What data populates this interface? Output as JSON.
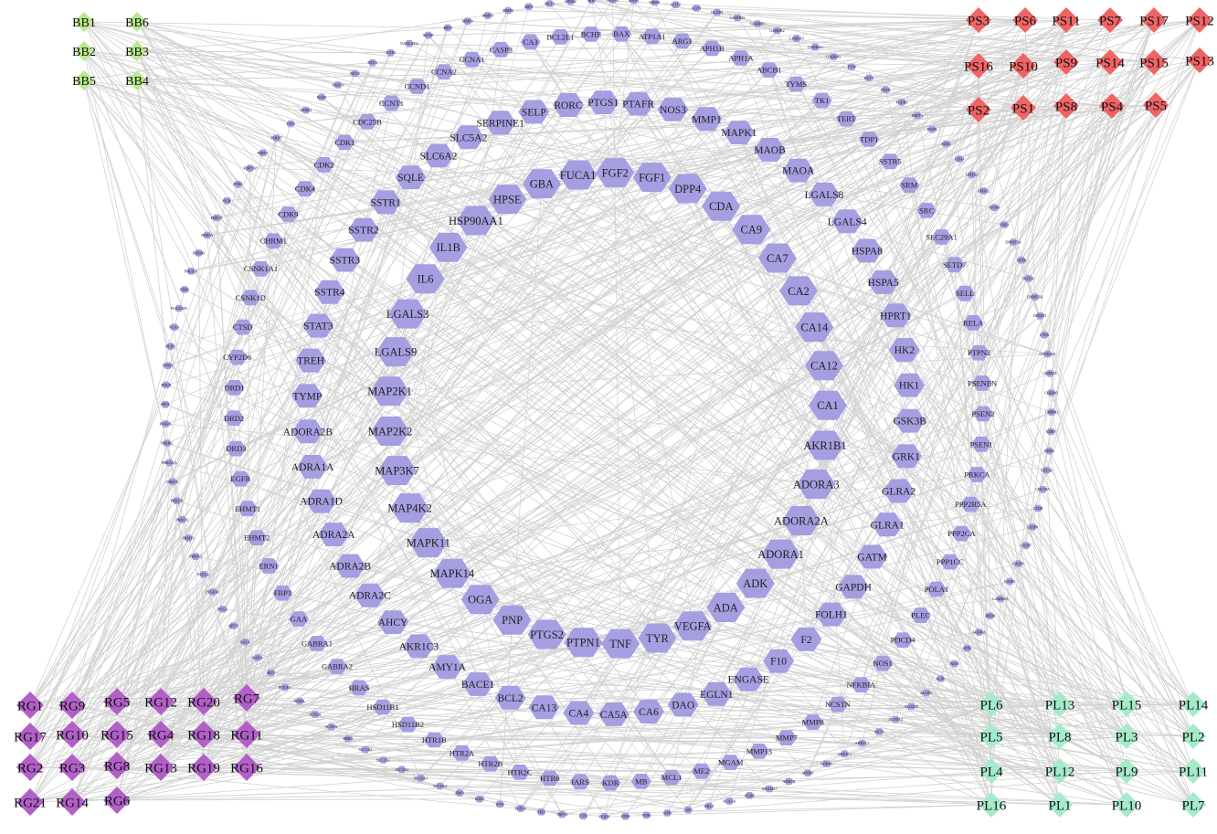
{
  "colors": {
    "edge": "#d2d2d2",
    "hexagon": "#a59ee0",
    "bb": "#b9ea8d",
    "ps": "#ef6464",
    "rg": "#b260c8",
    "pl": "#a5ebcb"
  },
  "node_shape": {
    "targets": "hexagon",
    "compounds": "diamond"
  },
  "compound_groups": [
    {
      "name": "BB",
      "ids": [
        "BB1",
        "BB6",
        "BB2",
        "BB3",
        "BB5",
        "BB4"
      ]
    },
    {
      "name": "PS",
      "ids": [
        "PS3",
        "PS6",
        "PS11",
        "PS7",
        "PS17",
        "PS12",
        "PS16",
        "PS10",
        "PS9",
        "PS14",
        "PS15",
        "PS13",
        "PS2",
        "PS1",
        "PS8",
        "PS4",
        "PS5"
      ]
    },
    {
      "name": "RG",
      "ids": [
        "RG1",
        "RG9",
        "RG5",
        "RG12",
        "RG20",
        "RG7",
        "RG17",
        "RG10",
        "RG15",
        "RG4",
        "RG18",
        "RG11",
        "RG2",
        "RG3",
        "RG8",
        "RG13",
        "RG19",
        "RG16",
        "RG21",
        "RG14",
        "RG6"
      ]
    },
    {
      "name": "PL",
      "ids": [
        "PL6",
        "PL13",
        "PL15",
        "PL14",
        "PL5",
        "PL8",
        "PL3",
        "PL2",
        "PL4",
        "PL12",
        "PL9",
        "PL11",
        "PL16",
        "PL1",
        "PL10",
        "PL7"
      ]
    }
  ],
  "target_rings": {
    "inner": [
      "FUCA1",
      "FGF2",
      "FGF1",
      "DPP4",
      "CDA",
      "CA9",
      "CA7",
      "CA2",
      "CA14",
      "CA12",
      "CA1",
      "AKR1B1",
      "ADORA3",
      "ADORA2A",
      "ADORA1",
      "ADK",
      "ADA",
      "VEGFA",
      "TYR",
      "TNF",
      "PTPN1",
      "PTGS2",
      "PNP",
      "OGA",
      "MAPK14",
      "MAPK11",
      "MAP4K2",
      "MAP3K7",
      "MAP2K2",
      "MAP2K1",
      "LGALS9",
      "LGALS3",
      "IL6",
      "IL1B",
      "HSP90AA1",
      "HPSE",
      "GBA"
    ],
    "ring2": [
      "PTGS1",
      "PTAFR",
      "NOS3",
      "MMP1",
      "MAPK1",
      "MAOB",
      "MAOA",
      "LGALS8",
      "LGALS4",
      "HSPA8",
      "HSPA5",
      "HPRT1",
      "HK2",
      "HK1",
      "GSK3B",
      "GRK1",
      "GLRA2",
      "GLRA1",
      "GATM",
      "GAPDH",
      "FOLH1",
      "F2",
      "F10",
      "ENGASE",
      "EGLN1",
      "DAO",
      "CA6",
      "CA5A",
      "CA4",
      "CA13",
      "BCL2",
      "BACE1",
      "AMY1A",
      "AKR1C3",
      "AHCY",
      "ADRA2C",
      "ADRA2B",
      "ADRA2A",
      "ADRA1D",
      "ADRA1A",
      "ADORA2B",
      "TYMP",
      "TREH",
      "STAT3",
      "SSTR4",
      "SSTR3",
      "SSTR2",
      "SSTR1",
      "SQLE",
      "SLC6A2",
      "SLC5A2",
      "SERPINE1",
      "SELP",
      "RORC"
    ],
    "ring3": [
      "BAX",
      "ATP1A1",
      "ARG1",
      "APH1B",
      "APH1A",
      "ABCB1",
      "TYMS",
      "TK1",
      "TERT",
      "TDP1",
      "SSTR5",
      "SRM",
      "SRC",
      "SLC29A1",
      "SETD7",
      "SELL",
      "RELA",
      "PTPN2",
      "PSENEN",
      "PSEN2",
      "PSEN1",
      "PRKCA",
      "PPP2R5A",
      "PPP2CA",
      "PPP1CC",
      "POLA1",
      "PLEC",
      "PDCD4",
      "NOS1",
      "NFKBIA",
      "NCSTN",
      "MMP8",
      "MMP7",
      "MMP13",
      "MGAM",
      "ME2",
      "MCL1",
      "MB",
      "KDR",
      "IARS",
      "HTR6",
      "HTR2C",
      "HTR2B",
      "HTR2A",
      "HTR1B",
      "HSD11B2",
      "HSD11B1",
      "HRAS",
      "GABRA2",
      "GABRA1",
      "GAA",
      "FBP1",
      "ERN1",
      "EHMT2",
      "EHMT1",
      "EGFR",
      "DRD3",
      "DRD2",
      "DRD1",
      "CYP2D6",
      "CTSD",
      "CSNK1D",
      "CSNK1A1",
      "CHRM1",
      "CDK9",
      "CDK4",
      "CDK2",
      "CDK1",
      "CDC25B",
      "CCNT1",
      "CCND1",
      "CCNA2",
      "CCNA1",
      "CASP3",
      "CA3",
      "BCL2L1",
      "BCHE"
    ],
    "outer": [
      "GRIA1",
      "GOT2",
      "GOT1",
      "GLUD1",
      "GAPDHS",
      "GABRB3",
      "GABRB2",
      "GABRA5",
      "GABRA3",
      "GABRA1",
      "FYN",
      "FUT7",
      "FNTA",
      "FGFR1",
      "FDFT1",
      "FASN",
      "EZH2",
      "EZH1",
      "EPHX2",
      "EPHA2",
      "EP300",
      "ESR1",
      "DNMT3A",
      "DPP8",
      "DOT1L",
      "DNMT3B",
      "DNMT1",
      "CTSS",
      "CSNK2A1",
      "CSNK1E",
      "CHRM3",
      "CHRM2",
      "CDK7",
      "CDK5",
      "CDC42",
      "CDC25A",
      "CD38",
      "CASP8",
      "CASP7",
      "CASP6",
      "CASP1",
      "CAMK2A",
      "BRD4",
      "AURKA",
      "ATR",
      "ATM",
      "ALPL",
      "ALOX5",
      "ALOX15",
      "ALOX12",
      "AKT1",
      "AKR1C2",
      "AKR1C1",
      "ADRB2",
      "ADRB1",
      "ADH1B",
      "ADAM17",
      "ACHE",
      "ACACA",
      "ABL1",
      "AR",
      "APP",
      "VDR",
      "XDH",
      "TYRP1",
      "TTR",
      "TRPV1",
      "TPI1",
      "TOP2A",
      "SYK",
      "SOD1",
      "SMO",
      "SLC6A4",
      "SLC6A3",
      "SLC2A4",
      "SLC2A1",
      "SLC1A2",
      "SHBG",
      "SCN5A",
      "SCN2A",
      "RXRA",
      "ROCK1",
      "RET",
      "RARA",
      "RAC1",
      "QPCT",
      "PYGL",
      "PTGER2",
      "PTPN11",
      "PRMT5",
      "PRMT1",
      "PRKCQ",
      "PRKCB",
      "PRKCE",
      "PRKACA",
      "PPARG",
      "PPARA",
      "PPIA",
      "POLB",
      "PNMT",
      "PLK1",
      "PLAA",
      "PLA2G1B",
      "PIM1",
      "PIK3CA",
      "PDE4D",
      "PDE5A",
      "PDE3A",
      "PGR",
      "PTK2",
      "P2RY12",
      "P2RY1",
      "P2RX7",
      "OTC",
      "OPRK1",
      "NOS2",
      "NR3C1",
      "NEU2",
      "NEU1",
      "NAT2",
      "NAALAD2",
      "MTAP",
      "MPO",
      "MMP9",
      "MMP3",
      "MMP2",
      "MET",
      "MCL1",
      "MDM2",
      "MIF",
      "MAOA",
      "MAPT"
    ]
  }
}
